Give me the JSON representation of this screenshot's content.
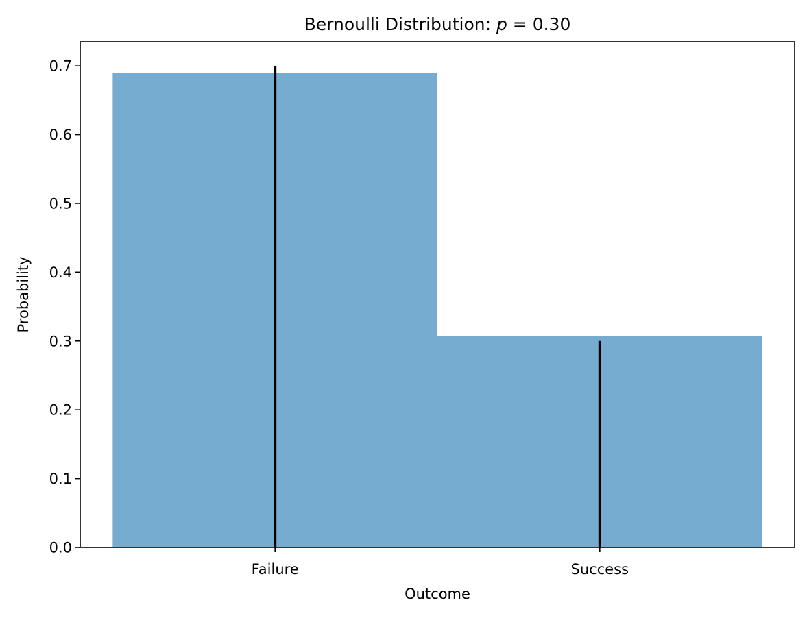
{
  "chart_data": {
    "type": "bar",
    "title_prefix": "Bernoulli Distribution: ",
    "title_variable": "p",
    "title_suffix": " = 0.30",
    "xlabel": "Outcome",
    "ylabel": "Probability",
    "categories": [
      "Failure",
      "Success"
    ],
    "histogram_values": [
      0.69,
      0.307
    ],
    "theoretical_pmf": [
      0.7,
      0.3
    ],
    "ylim": [
      0,
      0.735
    ],
    "yticks": [
      "0.0",
      "0.1",
      "0.2",
      "0.3",
      "0.4",
      "0.5",
      "0.6",
      "0.7"
    ],
    "grid": false,
    "legend": "none",
    "bar_color": "#77acd1",
    "stem_color": "#000000"
  }
}
